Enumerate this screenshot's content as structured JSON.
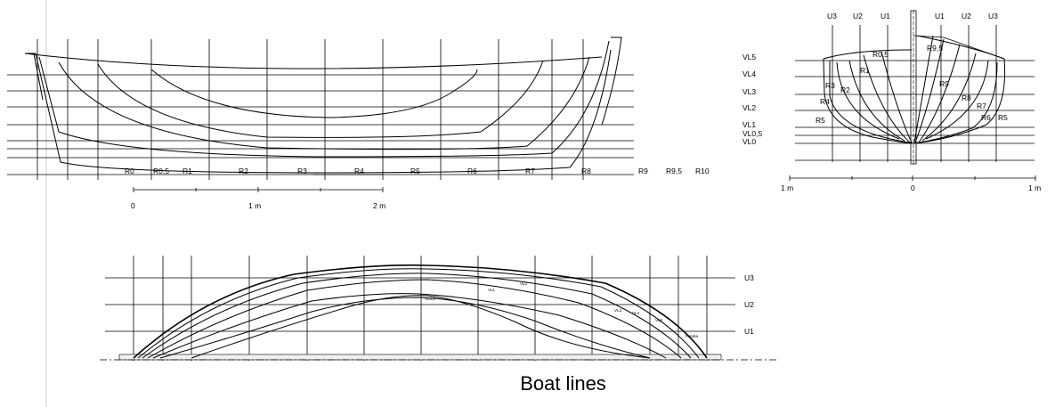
{
  "caption": "Boat lines",
  "profile": {
    "station_labels": [
      "R0",
      "R0,5",
      "R1",
      "R2",
      "R3",
      "R4",
      "R5",
      "R6",
      "R7",
      "R8",
      "R9",
      "R9,5",
      "R10"
    ],
    "scale_labels": [
      "0",
      "1 m",
      "2 m"
    ]
  },
  "body_plan": {
    "buttock_labels_left": [
      "U3",
      "U2",
      "U1"
    ],
    "buttock_labels_right": [
      "U1",
      "U2",
      "U3"
    ],
    "waterline_labels": [
      "VL5",
      "VL4",
      "VL3",
      "VL2",
      "VL1",
      "VL0,5",
      "VL0"
    ],
    "aft_section_labels": [
      "R0,5",
      "R1",
      "R2",
      "R3",
      "R4",
      "R5"
    ],
    "fore_section_labels": [
      "R9,5",
      "R9",
      "R8",
      "R7",
      "R6",
      "R5"
    ],
    "scale_labels": [
      "1 m",
      "0",
      "1 m"
    ]
  },
  "half_breadth": {
    "buttock_labels": [
      "U3",
      "U2",
      "U1"
    ],
    "curve_labels": [
      "VL0,5",
      "VL1",
      "VL2",
      "VL3",
      "VL4",
      "VL5",
      "Paluba"
    ]
  }
}
